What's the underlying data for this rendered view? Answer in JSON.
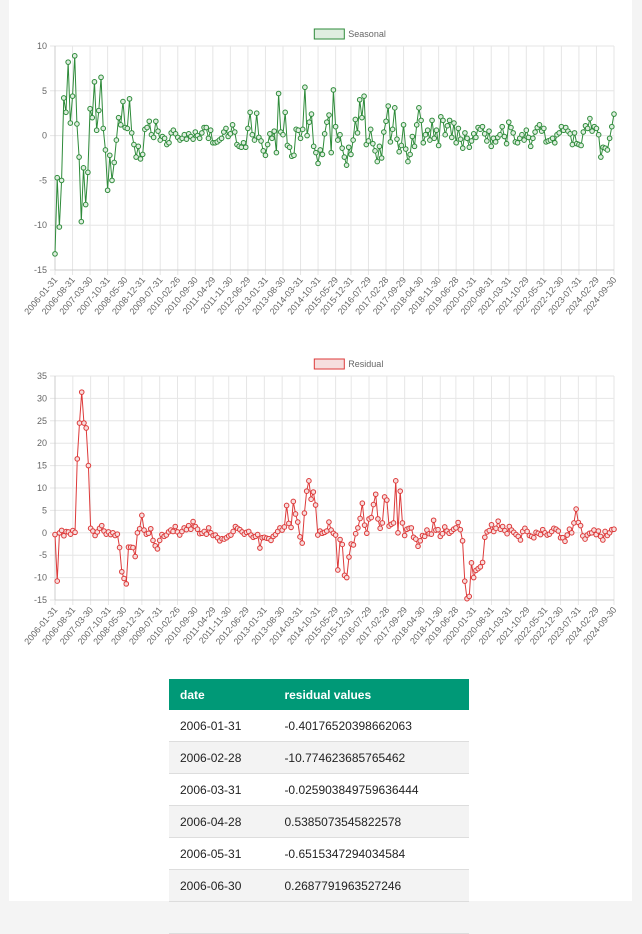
{
  "chart_data": [
    {
      "type": "line",
      "title": "",
      "legend": "Seasonal",
      "legend_position": "top",
      "ylim": [
        -15,
        10
      ],
      "yticks": [
        10,
        5,
        0,
        -5,
        -10,
        -15
      ],
      "grid": true,
      "color": "#2e8b3a",
      "fill": "#dfeee0",
      "x_start": "2006-01",
      "x_end": "2024-12",
      "x_tick_labels": [
        "2006-01-31",
        "2006-08-31",
        "2007-03-30",
        "2007-10-31",
        "2008-05-30",
        "2008-12-31",
        "2009-07-31",
        "2010-02-26",
        "2010-09-30",
        "2011-04-29",
        "2011-11-30",
        "2012-06-29",
        "2013-01-31",
        "2013-08-30",
        "2014-03-31",
        "2014-10-31",
        "2015-05-29",
        "2015-12-31",
        "2016-07-29",
        "2017-02-28",
        "2017-09-29",
        "2018-04-30",
        "2018-11-30",
        "2019-06-28",
        "2020-01-31",
        "2020-08-31",
        "2021-03-31",
        "2021-10-29",
        "2022-05-31",
        "2022-12-30",
        "2023-07-31",
        "2024-02-29",
        "2024-09-30"
      ],
      "values": [
        -13.2,
        -4.7,
        -10.2,
        -5.0,
        4.2,
        2.6,
        8.2,
        1.4,
        4.4,
        8.9,
        1.3,
        -2.4,
        -9.6,
        -3.6,
        -7.7,
        -4.1,
        3.0,
        2.0,
        6.0,
        0.6,
        2.8,
        6.5,
        0.8,
        -1.6,
        -6.1,
        -2.2,
        -5.0,
        -3.0,
        -0.5,
        2.0,
        1.2,
        3.8,
        0.9,
        0.8,
        4.1,
        0.3,
        -1.0,
        -2.4,
        -1.2,
        -2.6,
        -2.1,
        0.7,
        0.9,
        1.6,
        0.1,
        -0.2,
        1.6,
        0.5,
        -0.5,
        -0.1,
        -0.3,
        -1.0,
        -0.8,
        0.3,
        0.6,
        0.2,
        -0.2,
        -0.5,
        -0.3,
        0.1,
        -0.4,
        0.2,
        -0.1,
        -0.4,
        0.4,
        0.0,
        -0.3,
        0.3,
        0.9,
        0.9,
        -0.3,
        0.6,
        -0.8,
        -0.8,
        -0.7,
        -0.5,
        -0.3,
        0.4,
        0.8,
        -0.1,
        0.2,
        1.2,
        0.4,
        -1.0,
        -1.2,
        -1.3,
        -0.8,
        -1.3,
        0.8,
        2.6,
        0.1,
        -0.5,
        2.5,
        -0.2,
        -0.6,
        -1.7,
        -2.2,
        -1.0,
        0.2,
        -0.3,
        0.5,
        -1.9,
        4.7,
        0.4,
        0.1,
        2.6,
        -1.1,
        -1.3,
        -2.3,
        -2.2,
        0.7,
        0.6,
        -0.3,
        0.7,
        5.4,
        0.0,
        1.5,
        2.4,
        -1.2,
        -1.9,
        -3.1,
        -1.6,
        -2.1,
        0.2,
        1.5,
        2.3,
        -1.9,
        5.1,
        1.0,
        -0.5,
        0.1,
        -1.4,
        -2.4,
        -3.3,
        -1.3,
        -2.1,
        -0.5,
        1.8,
        0.3,
        4.0,
        2.0,
        4.4,
        -1.0,
        -0.6,
        0.7,
        -0.9,
        -1.7,
        -2.9,
        -1.2,
        -2.5,
        0.4,
        1.6,
        3.3,
        -0.7,
        0.7,
        3.1,
        -0.4,
        -1.8,
        -1.1,
        1.2,
        -1.5,
        -2.9,
        -2.1,
        -0.1,
        -1.2,
        1.2,
        3.1,
        1.7,
        -0.8,
        0.1,
        0.6,
        -0.5,
        1.7,
        -0.3,
        0.6,
        -1.1,
        2.1,
        1.7,
        0.1,
        1.1,
        1.7,
        -0.2,
        1.4,
        -0.8,
        0.8,
        -0.4,
        -1.4,
        0.3,
        -0.3,
        -1.3,
        -0.6,
        0.2,
        -0.2,
        0.9,
        0.7,
        1.0,
        0.2,
        -0.6,
        0.5,
        -1.2,
        -0.3,
        -0.7,
        -0.2,
        0.1,
        1.0,
        -0.1,
        -0.9,
        1.5,
        0.9,
        0.3,
        -0.7,
        -0.8,
        -0.3,
        0.1,
        -0.5,
        0.6,
        -0.2,
        -1.2,
        -0.3,
        0.4,
        0.9,
        1.2,
        0.5,
        0.8,
        -0.7,
        -0.6,
        -0.5,
        -0.3,
        -0.8,
        0.1,
        0.3,
        1.0,
        0.6,
        0.9,
        0.5,
        0.2,
        -1.0,
        0.3,
        -0.9,
        -1.0,
        -1.1,
        0.4,
        1.1,
        0.8,
        1.9,
        0.5,
        1.0,
        0.8,
        0.1,
        -2.4,
        -1.3,
        -1.4,
        -1.6,
        -0.3,
        1.0,
        2.4
      ]
    },
    {
      "type": "line",
      "title": "",
      "legend": "Residual",
      "legend_position": "top",
      "ylim": [
        -15,
        35
      ],
      "yticks": [
        35,
        30,
        25,
        20,
        15,
        10,
        5,
        0,
        -5,
        -10,
        -15
      ],
      "grid": true,
      "color": "#dd3a3a",
      "fill": "#f6dede",
      "x_start": "2006-01",
      "x_end": "2024-12",
      "x_tick_labels": [
        "2006-01-31",
        "2006-08-31",
        "2007-03-30",
        "2007-10-31",
        "2008-05-30",
        "2008-12-31",
        "2009-07-31",
        "2010-02-26",
        "2010-09-30",
        "2011-04-29",
        "2011-11-30",
        "2012-06-29",
        "2013-01-31",
        "2013-08-30",
        "2014-03-31",
        "2014-10-31",
        "2015-05-29",
        "2015-12-31",
        "2016-07-29",
        "2017-02-28",
        "2017-09-29",
        "2018-04-30",
        "2018-11-30",
        "2019-06-28",
        "2020-01-31",
        "2020-08-31",
        "2021-03-31",
        "2021-10-29",
        "2022-05-31",
        "2022-12-30",
        "2023-07-31",
        "2024-02-29",
        "2024-09-30"
      ],
      "values": [
        -0.40176520398662063,
        -10.774623685765462,
        -0.025903849759636444,
        0.5385073545822578,
        -0.6515347294034584,
        0.2687791963527246,
        0.2,
        -0.3,
        0.5,
        0.1,
        16.5,
        24.5,
        31.4,
        24.5,
        23.4,
        15.0,
        1.0,
        0.4,
        -0.6,
        0.2,
        1.0,
        1.6,
        0.4,
        -0.3,
        0.2,
        -0.4,
        0.0,
        -0.6,
        -0.3,
        -3.3,
        -8.7,
        -10.2,
        -11.4,
        -3.2,
        -3.2,
        -3.3,
        -5.3,
        0.0,
        0.9,
        3.9,
        0.6,
        -0.3,
        -0.1,
        0.9,
        -1.7,
        -2.9,
        -3.6,
        -1.7,
        -0.4,
        -0.8,
        -0.5,
        0.2,
        0.6,
        0.3,
        1.4,
        0.2,
        -0.5,
        0.3,
        1.1,
        0.7,
        1.6,
        0.8,
        2.5,
        1.4,
        0.8,
        -0.2,
        -0.1,
        0.3,
        -0.3,
        1.1,
        0.0,
        -0.6,
        -0.5,
        -1.1,
        -1.8,
        -1.3,
        -1.4,
        -1.1,
        -0.7,
        -0.5,
        0.3,
        1.4,
        1.0,
        0.7,
        0.2,
        -0.3,
        0.1,
        0.3,
        -0.5,
        -1.0,
        -0.8,
        -0.4,
        -3.4,
        -1.1,
        -1.0,
        -1.2,
        -1.3,
        -1.7,
        -0.8,
        -0.4,
        0.3,
        1.1,
        0.6,
        1.3,
        6.1,
        2.1,
        1.2,
        7.0,
        4.2,
        2.4,
        -0.9,
        -2.3,
        4.4,
        9.3,
        11.6,
        7.5,
        9.1,
        6.2,
        -0.5,
        0.4,
        -0.1,
        0.1,
        0.4,
        2.4,
        0.6,
        -0.1,
        -0.5,
        -8.3,
        -1.5,
        -2.6,
        -9.5,
        -10.0,
        -5.4,
        -2.5,
        -2.7,
        -0.2,
        1.1,
        3.2,
        6.6,
        1.7,
        -0.1,
        3.1,
        3.4,
        6.3,
        8.6,
        3.1,
        1.0,
        2.2,
        8.0,
        7.3,
        1.5,
        1.9,
        2.2,
        11.6,
        0.0,
        9.3,
        2.2,
        -0.6,
        0.8,
        1.0,
        1.1,
        -1.0,
        -1.4,
        -3.0,
        -1.8,
        -0.6,
        -0.8,
        0.6,
        -0.2,
        -0.3,
        2.8,
        0.6,
        0.7,
        -0.8,
        -0.2,
        1.3,
        0.4,
        -0.1,
        0.3,
        0.8,
        1.1,
        2.3,
        0.7,
        -1.8,
        -10.8,
        -14.7,
        -14.2,
        -6.7,
        -10.0,
        -8.4,
        -8.0,
        -7.6,
        -6.6,
        -1.0,
        0.2,
        0.5,
        1.8,
        0.3,
        1.0,
        2.6,
        0.8,
        1.4,
        0.5,
        -0.2,
        1.4,
        0.6,
        0.1,
        -0.4,
        -0.8,
        -1.6,
        0.3,
        1.0,
        0.3,
        -0.6,
        -0.8,
        -1.1,
        0.1,
        -0.1,
        -0.4,
        0.7,
        0.0,
        -0.5,
        -0.3,
        0.3,
        1.0,
        0.8,
        0.4,
        -1.1,
        -1.1,
        -1.9,
        -0.5,
        0.8,
        0.0,
        2.2,
        5.3,
        2.3,
        1.6,
        -0.7,
        -1.4,
        -0.5,
        -0.1,
        0.0,
        0.6,
        -0.4,
        0.4,
        -0.8,
        -1.6,
        0.3,
        -0.6,
        0.0,
        0.7,
        0.8
      ]
    }
  ],
  "table": {
    "headers": [
      "date",
      "residual values"
    ],
    "rows": [
      [
        "2006-01-31",
        "-0.40176520398662063"
      ],
      [
        "2006-02-28",
        "-10.774623685765462"
      ],
      [
        "2006-03-31",
        "-0.025903849759636444"
      ],
      [
        "2006-04-28",
        "0.5385073545822578"
      ],
      [
        "2006-05-31",
        "-0.6515347294034584"
      ],
      [
        "2006-06-30",
        "0.2687791963527246"
      ],
      [
        "",
        ""
      ]
    ]
  }
}
